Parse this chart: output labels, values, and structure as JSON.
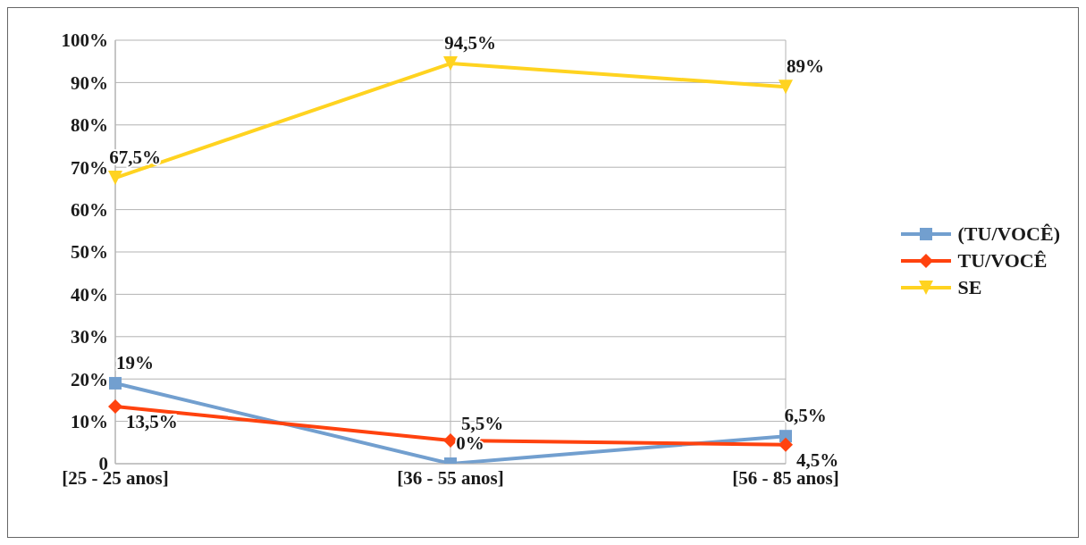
{
  "chart_data": {
    "type": "line",
    "categories": [
      "[25 - 25 anos]",
      "[36 - 55 anos]",
      "[56 - 85 anos]"
    ],
    "series": [
      {
        "name": "(TU/VOCÊ)",
        "color": "#729fcf",
        "marker": "square",
        "values": [
          19,
          0,
          6.5
        ],
        "value_labels": [
          "19%",
          "0%",
          "6,5%"
        ]
      },
      {
        "name": "TU/VOCÊ",
        "color": "#ff420e",
        "marker": "diamond",
        "values": [
          13.5,
          5.5,
          4.5
        ],
        "value_labels": [
          "13,5%",
          "5,5%",
          "4,5%"
        ]
      },
      {
        "name": "SE",
        "color": "#ffd320",
        "marker": "triangle",
        "values": [
          67.5,
          94.5,
          89
        ],
        "value_labels": [
          "67,5%",
          "94,5%",
          "89%"
        ]
      }
    ],
    "ylim": [
      0,
      100
    ],
    "yticks": [
      {
        "value": 0,
        "label": "0"
      },
      {
        "value": 10,
        "label": "10%"
      },
      {
        "value": 20,
        "label": "20%"
      },
      {
        "value": 30,
        "label": "30%"
      },
      {
        "value": 40,
        "label": "40%"
      },
      {
        "value": 50,
        "label": "50%"
      },
      {
        "value": 60,
        "label": "60%"
      },
      {
        "value": 70,
        "label": "70%"
      },
      {
        "value": 80,
        "label": "80%"
      },
      {
        "value": 90,
        "label": "90%"
      },
      {
        "value": 100,
        "label": "100%"
      }
    ],
    "grid": true,
    "legend": "right",
    "line_style": "solid"
  }
}
